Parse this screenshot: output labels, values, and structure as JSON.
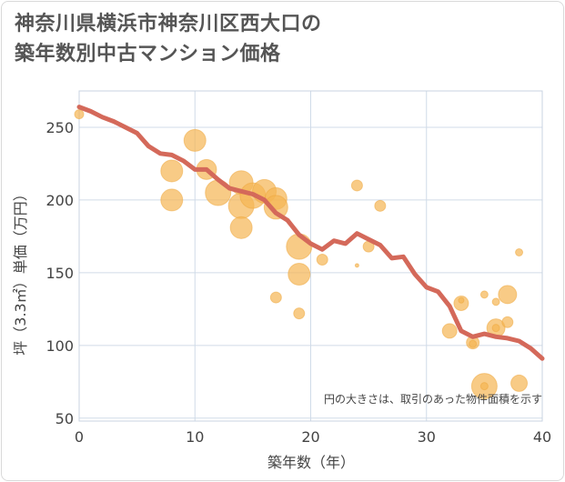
{
  "title_lines": [
    "神奈川県横浜市神奈川区西大口の",
    "築年数別中古マンション価格"
  ],
  "chart_data": {
    "type": "scatter",
    "xlabel": "築年数（年）",
    "ylabel": "坪（3.3㎡）単価（万円）",
    "xlim": [
      0,
      40
    ],
    "ylim": [
      48,
      275
    ],
    "x_ticks": [
      0,
      10,
      20,
      30,
      40
    ],
    "y_ticks": [
      50,
      100,
      150,
      200,
      250
    ],
    "grid": true,
    "note": "円の大きさは、取引のあった物件面積を示す",
    "colors": {
      "bubble": "#f5b553",
      "line": "#d4695a",
      "grid": "#d0dbe8"
    },
    "points": [
      {
        "x": 0,
        "y": 259,
        "s": 5
      },
      {
        "x": 8,
        "y": 220,
        "s": 12
      },
      {
        "x": 8,
        "y": 200,
        "s": 12
      },
      {
        "x": 10,
        "y": 241,
        "s": 12
      },
      {
        "x": 11,
        "y": 221,
        "s": 11
      },
      {
        "x": 12,
        "y": 205,
        "s": 14
      },
      {
        "x": 14,
        "y": 212,
        "s": 13
      },
      {
        "x": 14,
        "y": 196,
        "s": 14
      },
      {
        "x": 14,
        "y": 181,
        "s": 12
      },
      {
        "x": 15,
        "y": 203,
        "s": 14
      },
      {
        "x": 16,
        "y": 206,
        "s": 13
      },
      {
        "x": 17,
        "y": 201,
        "s": 12
      },
      {
        "x": 17,
        "y": 195,
        "s": 13
      },
      {
        "x": 17,
        "y": 133,
        "s": 6
      },
      {
        "x": 19,
        "y": 168,
        "s": 14
      },
      {
        "x": 19,
        "y": 149,
        "s": 12
      },
      {
        "x": 19,
        "y": 122,
        "s": 6
      },
      {
        "x": 21,
        "y": 159,
        "s": 6
      },
      {
        "x": 24,
        "y": 210,
        "s": 6
      },
      {
        "x": 24,
        "y": 155,
        "s": 2
      },
      {
        "x": 25,
        "y": 168,
        "s": 6
      },
      {
        "x": 26,
        "y": 196,
        "s": 6
      },
      {
        "x": 32,
        "y": 110,
        "s": 8
      },
      {
        "x": 33,
        "y": 129,
        "s": 8
      },
      {
        "x": 33,
        "y": 131,
        "s": 3
      },
      {
        "x": 34,
        "y": 102,
        "s": 7
      },
      {
        "x": 34,
        "y": 101,
        "s": 4
      },
      {
        "x": 35,
        "y": 135,
        "s": 4
      },
      {
        "x": 35,
        "y": 72,
        "s": 14
      },
      {
        "x": 35,
        "y": 72,
        "s": 4
      },
      {
        "x": 36,
        "y": 112,
        "s": 10
      },
      {
        "x": 36,
        "y": 112,
        "s": 4
      },
      {
        "x": 36,
        "y": 130,
        "s": 4
      },
      {
        "x": 37,
        "y": 135,
        "s": 10
      },
      {
        "x": 37,
        "y": 116,
        "s": 6
      },
      {
        "x": 38,
        "y": 164,
        "s": 4
      },
      {
        "x": 38,
        "y": 74,
        "s": 9
      }
    ],
    "trend": [
      [
        0,
        264
      ],
      [
        1,
        261
      ],
      [
        2,
        257
      ],
      [
        3,
        254
      ],
      [
        4,
        250
      ],
      [
        5,
        246
      ],
      [
        6,
        237
      ],
      [
        7,
        232
      ],
      [
        8,
        231
      ],
      [
        9,
        227
      ],
      [
        10,
        221
      ],
      [
        11,
        221
      ],
      [
        12,
        214
      ],
      [
        13,
        208
      ],
      [
        14,
        206
      ],
      [
        15,
        204
      ],
      [
        16,
        200
      ],
      [
        17,
        191
      ],
      [
        18,
        186
      ],
      [
        19,
        176
      ],
      [
        20,
        170
      ],
      [
        21,
        166
      ],
      [
        22,
        172
      ],
      [
        23,
        170
      ],
      [
        24,
        177
      ],
      [
        25,
        173
      ],
      [
        26,
        169
      ],
      [
        27,
        160
      ],
      [
        28,
        161
      ],
      [
        29,
        149
      ],
      [
        30,
        140
      ],
      [
        31,
        137
      ],
      [
        32,
        127
      ],
      [
        33,
        110
      ],
      [
        34,
        106
      ],
      [
        35,
        108
      ],
      [
        36,
        106
      ],
      [
        37,
        105
      ],
      [
        38,
        103
      ],
      [
        39,
        98
      ],
      [
        40,
        91
      ]
    ]
  }
}
